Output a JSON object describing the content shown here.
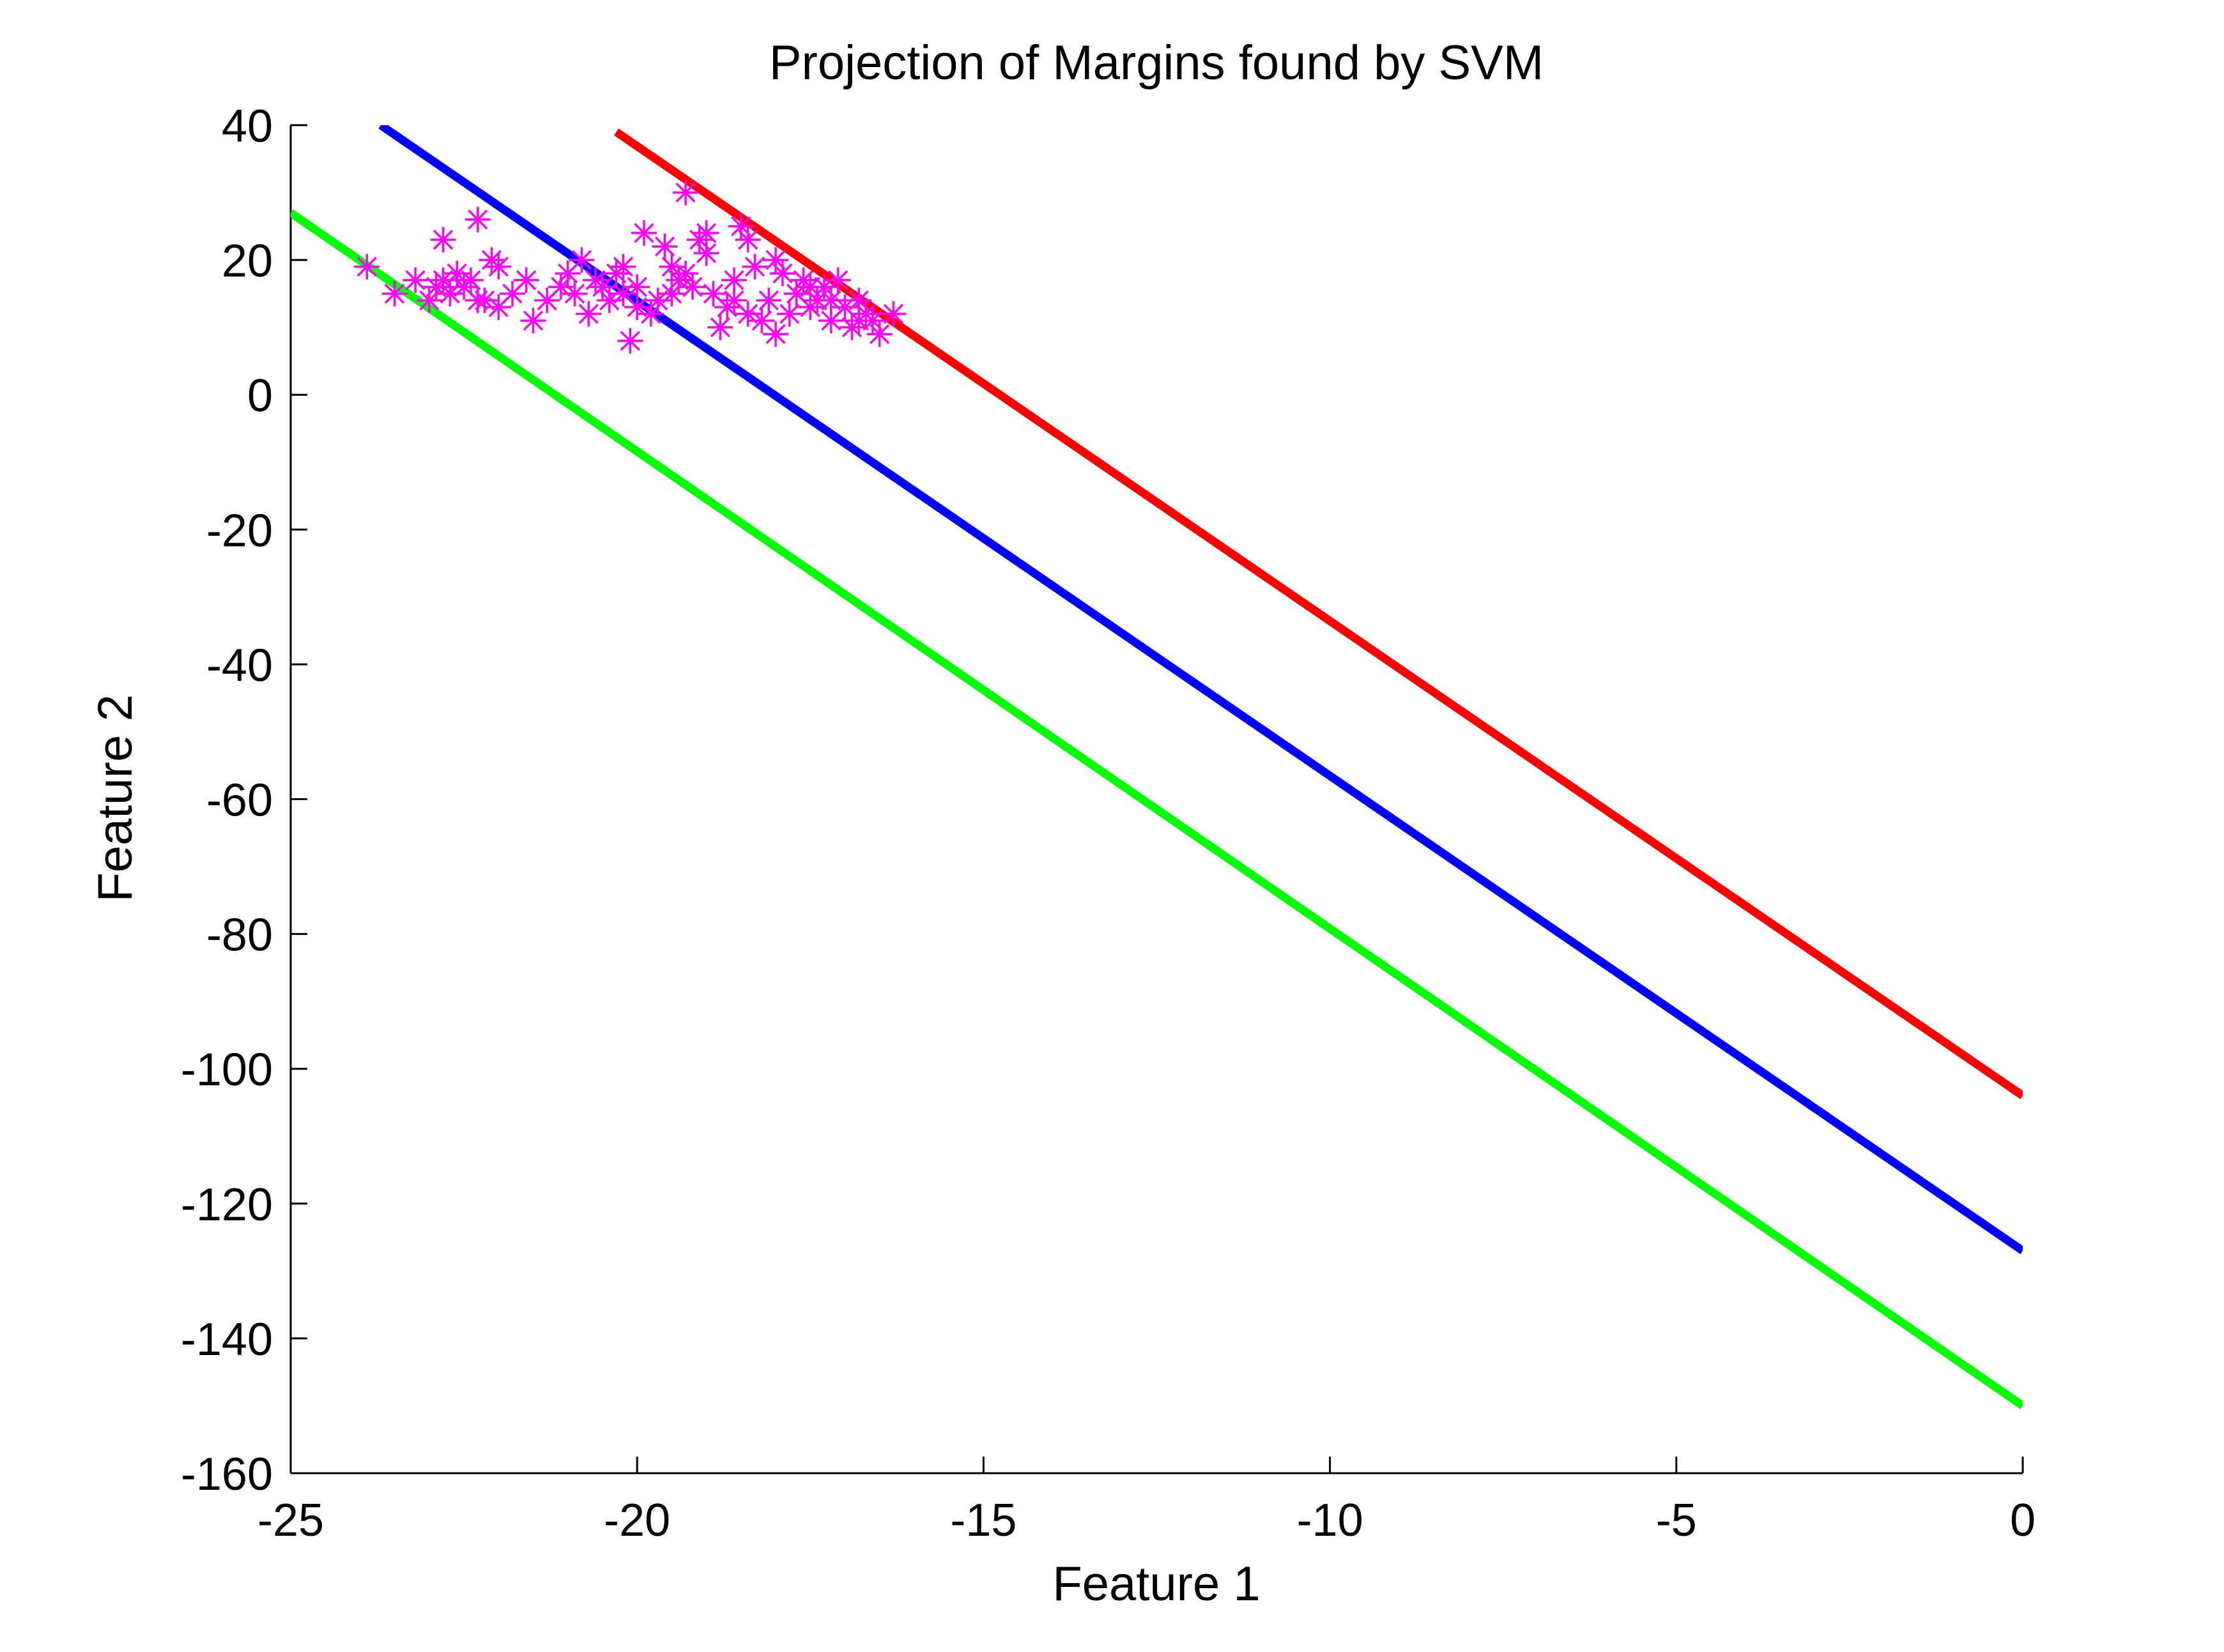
{
  "chart_data": {
    "type": "line",
    "title": "Projection of Margins found by SVM",
    "xlabel": "Feature 1",
    "ylabel": "Feature 2",
    "xlim": [
      -25,
      0
    ],
    "ylim": [
      -160,
      40
    ],
    "xticks": [
      -25,
      -20,
      -15,
      -10,
      -5,
      0
    ],
    "yticks": [
      40,
      20,
      0,
      -20,
      -40,
      -60,
      -80,
      -100,
      -120,
      -140,
      -160
    ],
    "grid": false,
    "legend": "none",
    "series": [
      {
        "type": "line",
        "color": "#ff0000",
        "x": [
          -20.3,
          0
        ],
        "y": [
          39,
          -104
        ]
      },
      {
        "type": "line",
        "color": "#0000ff",
        "x": [
          -23.7,
          0
        ],
        "y": [
          40,
          -127
        ]
      },
      {
        "type": "line",
        "color": "#00ff00",
        "x": [
          -25,
          0
        ],
        "y": [
          27,
          -150
        ]
      },
      {
        "type": "scatter",
        "marker": "asterisk",
        "color": "#ff00ff",
        "x": [
          -23.9,
          -23.5,
          -23.2,
          -23.0,
          -22.9,
          -22.8,
          -22.7,
          -22.6,
          -22.5,
          -22.4,
          -22.3,
          -22.2,
          -22.1,
          -22.0,
          -21.8,
          -21.6,
          -21.5,
          -21.3,
          -21.1,
          -20.9,
          -20.8,
          -20.7,
          -20.6,
          -20.5,
          -20.4,
          -20.3,
          -20.2,
          -20.1,
          -20.0,
          -19.9,
          -19.8,
          -19.7,
          -19.6,
          -19.5,
          -19.4,
          -19.3,
          -19.2,
          -19.1,
          -19.0,
          -18.9,
          -18.8,
          -18.7,
          -18.6,
          -18.5,
          -18.4,
          -18.3,
          -18.2,
          -18.1,
          -18.0,
          -17.9,
          -17.8,
          -17.7,
          -17.6,
          -17.5,
          -17.4,
          -17.3,
          -17.2,
          -17.1,
          -17.0,
          -16.9,
          -16.8,
          -16.7,
          -16.6,
          -16.5,
          -16.3,
          -22.3,
          -22.8,
          -20.0,
          -19.3,
          -18.6,
          -20.2,
          -19.0,
          -18.0,
          -17.5,
          -21.0,
          -22.0,
          -19.5,
          -18.4,
          -17.2,
          -16.8
        ],
        "y": [
          19,
          15,
          17,
          14,
          16,
          23,
          15,
          18,
          16,
          17,
          26,
          14,
          20,
          19,
          15,
          17,
          11,
          14,
          16,
          15,
          20,
          12,
          17,
          16,
          14,
          18,
          19,
          8,
          13,
          24,
          12,
          14,
          22,
          19,
          17,
          30,
          16,
          23,
          24,
          15,
          10,
          13,
          17,
          25,
          23,
          19,
          11,
          14,
          9,
          18,
          12,
          15,
          17,
          13,
          14,
          16,
          11,
          17,
          13,
          10,
          14,
          12,
          11,
          9,
          12,
          14,
          17,
          16,
          18,
          14,
          15,
          21,
          20,
          16,
          18,
          13,
          15,
          12,
          14,
          11
        ]
      }
    ]
  }
}
